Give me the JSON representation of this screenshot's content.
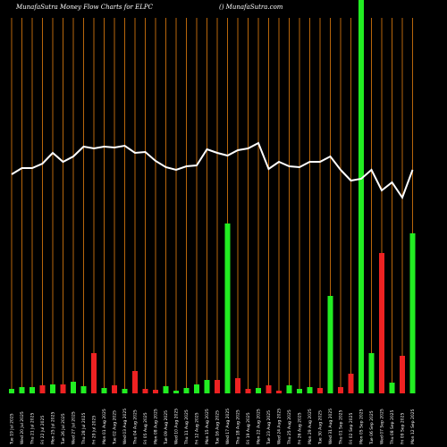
{
  "chart_data": {
    "type": "money-flow",
    "title": "MunafaSutra  Money Flow  Charts for ELPC",
    "subtitle": "() MunafaSutra.com",
    "categories": [
      "Tue 19 Jul 2025",
      "Wed 20 Jul 2025",
      "Thu 21 Jul 2025",
      "Fri 22 Jul 2025",
      "Mon 25 Jul 2025",
      "Tue 26 Jul 2025",
      "Wed 27 Jul 2025",
      "Thu 28 Jul 2025",
      "Fri 29 Jul 2025",
      "Mon 01 Aug 2025",
      "Tue 02 Aug 2025",
      "Wed 03 Aug 2025",
      "Thu 04 Aug 2025",
      "Fri 05 Aug 2025",
      "Mon 08 Aug 2025",
      "Tue 09 Aug 2025",
      "Wed 10 Aug 2025",
      "Thu 11 Aug 2025",
      "Fri 12 Aug 2025",
      "Mon 15 Aug 2025",
      "Tue 16 Aug 2025",
      "Wed 17 Aug 2025",
      "Thu 18 Aug 2025",
      "Fri 19 Aug 2025",
      "Mon 22 Aug 2025",
      "Tue 23 Aug 2025",
      "Wed 24 Aug 2025",
      "Thu 25 Aug 2025",
      "Fri 26 Aug 2025",
      "Mon 29 Aug 2025",
      "Tue 30 Aug 2025",
      "Wed 31 Aug 2025",
      "Thu 01 Sep 2025",
      "Fri 02 Sep 2025",
      "Mon 05 Sep 2025",
      "Tue 06 Sep 2025",
      "Wed 07 Sep 2025",
      "Thu 08 Sep 2025",
      "Fri 09 Sep 2025",
      "Mon 12 Sep 2025"
    ],
    "series": [
      {
        "name": "Money Flow",
        "values": [
          5,
          7,
          7,
          9,
          10,
          10,
          13,
          8,
          45,
          6,
          9,
          5,
          25,
          5,
          4,
          8,
          3,
          6,
          10,
          15,
          15,
          190,
          17,
          5,
          6,
          9,
          3,
          9,
          5,
          7,
          6,
          109,
          7,
          22,
          440,
          45,
          157,
          12,
          42,
          179
        ],
        "colors": [
          "#22ee22",
          "#22ee22",
          "#22ee22",
          "#ee2222",
          "#22ee22",
          "#ee2222",
          "#22ee22",
          "#22ee22",
          "#ee2222",
          "#22ee22",
          "#ee2222",
          "#22ee22",
          "#ee2222",
          "#ee2222",
          "#ee2222",
          "#22ee22",
          "#22ee22",
          "#22ee22",
          "#22ee22",
          "#22ee22",
          "#ee2222",
          "#22ee22",
          "#ee2222",
          "#ee2222",
          "#22ee22",
          "#ee2222",
          "#ee2222",
          "#22ee22",
          "#22ee22",
          "#22ee22",
          "#ee2222",
          "#22ee22",
          "#ee2222",
          "#ee2222",
          "#22ee22",
          "#22ee22",
          "#ee2222",
          "#22ee22",
          "#ee2222",
          "#22ee22"
        ]
      },
      {
        "name": "Price",
        "color": "#ffffff",
        "axis": "y2",
        "values": [
          245,
          252,
          252,
          257,
          269,
          259,
          265,
          276,
          274,
          276,
          275,
          277,
          269,
          270,
          260,
          253,
          250,
          254,
          255,
          273,
          269,
          266,
          272,
          274,
          280,
          251,
          259,
          254,
          253,
          259,
          259,
          265,
          250,
          238,
          240,
          250,
          227,
          236,
          219,
          250
        ]
      }
    ],
    "ylim": [
      0,
      440
    ],
    "y2lim": [
      0,
      440
    ],
    "grid": true,
    "grid_color": "#b8660b",
    "background": "#000000"
  }
}
